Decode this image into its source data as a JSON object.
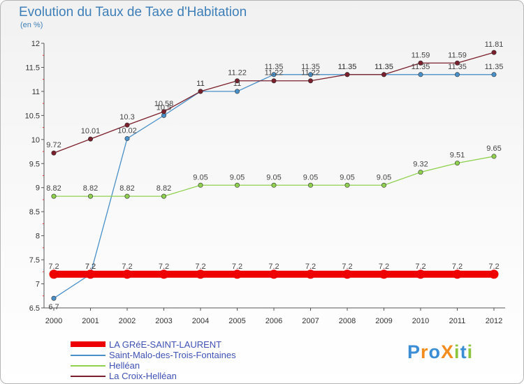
{
  "title": "Evolution du Taux de Taxe d'Habitation",
  "subtitle": "(en %)",
  "logo": "ProXiti",
  "chart_data": {
    "type": "line",
    "title": "Evolution du Taux de Taxe d'Habitation",
    "ylabel": "(en %)",
    "xlabel": "",
    "x": [
      2000,
      2001,
      2002,
      2003,
      2004,
      2005,
      2006,
      2007,
      2008,
      2009,
      2010,
      2011,
      2012
    ],
    "ylim": [
      6.5,
      12
    ],
    "yticks": [
      6.5,
      7,
      7.5,
      8,
      8.5,
      9,
      9.5,
      10,
      10.5,
      11,
      11.5,
      12
    ],
    "grid": false,
    "legend_position": "bottom",
    "series": [
      {
        "name": "LA GRéE-SAINT-LAURENT",
        "color": "#ee0000",
        "values": [
          7.2,
          7.2,
          7.2,
          7.2,
          7.2,
          7.2,
          7.2,
          7.2,
          7.2,
          7.2,
          7.2,
          7.2,
          7.2
        ],
        "labels": [
          "7.2",
          "7.2",
          "7.2",
          "7.2",
          "7.2",
          "7.2",
          "7.2",
          "7.2",
          "7.2",
          "7.2",
          "7.2",
          "7.2",
          "7.2"
        ]
      },
      {
        "name": "Saint-Malo-des-Trois-Fontaines",
        "color": "#4a90c8",
        "values": [
          6.7,
          7.2,
          10.02,
          10.5,
          11,
          11,
          11.35,
          11.35,
          11.35,
          11.35,
          11.35,
          11.35,
          11.35
        ],
        "labels": [
          "6.7",
          "7.2",
          "10.02",
          "10.5",
          "11",
          "11",
          "11.35",
          "11.35",
          "11.35",
          "11.35",
          "11.35",
          "11.35",
          "11.35"
        ]
      },
      {
        "name": "Helléan",
        "color": "#8fd14f",
        "values": [
          8.82,
          8.82,
          8.82,
          8.82,
          9.05,
          9.05,
          9.05,
          9.05,
          9.05,
          9.05,
          9.32,
          9.51,
          9.65
        ],
        "labels": [
          "8.82",
          "8.82",
          "8.82",
          "8.82",
          "9.05",
          "9.05",
          "9.05",
          "9.05",
          "9.05",
          "9.05",
          "9.32",
          "9.51",
          "9.65"
        ]
      },
      {
        "name": "La Croix-Helléan",
        "color": "#7a1f2b",
        "values": [
          9.72,
          10.01,
          10.3,
          10.58,
          11,
          11.22,
          11.22,
          11.22,
          11.35,
          11.35,
          11.59,
          11.59,
          11.81
        ],
        "labels": [
          "9.72",
          "10.01",
          "10.3",
          "10.58",
          "11",
          "11.22",
          "11.22",
          "11.22",
          "11.35",
          "11.35",
          "11.59",
          "11.59",
          "11.81"
        ]
      }
    ]
  }
}
